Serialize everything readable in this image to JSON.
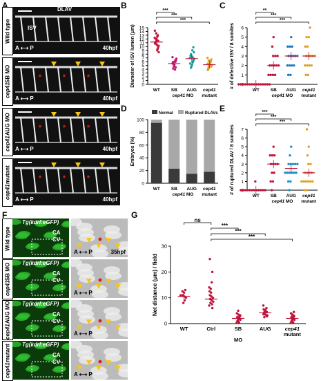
{
  "panel_letters": {
    "a": "A",
    "b": "B",
    "c": "C",
    "d": "D",
    "e": "E",
    "f": "F",
    "g": "G"
  },
  "panelA": {
    "rows": [
      {
        "label": "Wild type"
      },
      {
        "label": "cep41 SB MO"
      },
      {
        "label": "cep41 AUG MO"
      },
      {
        "label": "cep41 mutant"
      }
    ],
    "dlav": "DLAV",
    "isv": "ISV",
    "axis": "A ⟷ P",
    "stage": "40hpf"
  },
  "panelF": {
    "rows": [
      {
        "label": "Wild type"
      },
      {
        "label": "cep41 SB MO"
      },
      {
        "label": "cep41 AUG MO"
      },
      {
        "label": "cep41 mutant"
      }
    ],
    "transgene": "Tg(kdrl:eGFP)",
    "ca": "CA",
    "cv": "CV",
    "axis": "A ⟷ P",
    "stage": "35hpf"
  },
  "chart_data": [
    {
      "id": "B",
      "type": "scatter",
      "ylabel": "Diameter of ISV lumen (μm)",
      "ylim": [
        0,
        15
      ],
      "yticks": [
        "0",
        "1",
        "2",
        "3",
        "4",
        "5",
        "6",
        "7",
        "8",
        "9",
        "10",
        "11",
        "12",
        "13",
        "14",
        "15"
      ],
      "categories": [
        "WT",
        "SB",
        "AUG",
        "cep41 mutant"
      ],
      "group_label": "cep41 MO",
      "means": [
        11.2,
        5.5,
        6.8,
        5.2
      ],
      "colors": [
        "#c0143c",
        "#c2187a",
        "#18a0a0",
        "#e0a020"
      ],
      "points": [
        [
          14.2,
          13.5,
          13,
          12.6,
          12.3,
          12,
          11.8,
          11.5,
          11.2,
          11,
          10.8,
          10.5,
          10.2,
          9.8,
          9.4,
          9,
          8.5,
          12.8
        ],
        [
          7.2,
          6.8,
          6.4,
          6,
          5.7,
          5.5,
          5.2,
          5,
          4.8,
          4.5,
          4.2,
          3.9,
          5.9,
          6.2
        ],
        [
          9.8,
          9,
          8.5,
          8,
          7.6,
          7.3,
          7,
          6.8,
          6.6,
          6.4,
          6.2,
          6,
          5.8,
          5.5,
          5.2,
          4.8,
          4.4,
          7.8,
          7.1
        ],
        [
          7,
          6.6,
          6.2,
          6,
          5.8,
          5.6,
          5.4,
          5.2,
          5,
          4.9,
          4.8,
          4.6,
          4.4,
          4.2,
          4,
          3.8,
          5.5,
          5.1,
          4.7,
          6.3
        ]
      ],
      "sig": [
        {
          "from": 0,
          "to": 1,
          "text": "***"
        },
        {
          "from": 0,
          "to": 2,
          "text": "***"
        },
        {
          "from": 0,
          "to": 3,
          "text": "***"
        }
      ]
    },
    {
      "id": "C",
      "type": "scatter",
      "ylabel": "# of defective ISV / 8 somites",
      "ylim": [
        0,
        6
      ],
      "yticks": [
        "0",
        "1",
        "2",
        "3",
        "4",
        "5",
        "6"
      ],
      "categories": [
        "WT",
        "SB",
        "AUG",
        "cep41 mutant"
      ],
      "group_label": "cep41 MO",
      "means": [
        0,
        2,
        3,
        3
      ],
      "colors": [
        "#c0143c",
        "#c0143c",
        "#1878c8",
        "#e0a020"
      ],
      "points": [
        [
          0,
          0,
          0,
          0,
          0,
          0,
          0,
          0,
          0,
          0,
          0,
          0,
          0,
          0,
          0
        ],
        [
          5,
          4,
          3,
          3,
          2,
          2,
          2,
          2,
          1,
          1,
          1,
          1,
          2,
          3
        ],
        [
          5,
          4,
          4,
          3,
          3,
          3,
          3,
          2,
          2,
          2,
          1,
          1,
          3,
          4,
          2
        ],
        [
          6,
          5,
          5,
          4,
          4,
          3,
          3,
          3,
          3,
          2,
          2,
          2,
          2,
          1,
          1,
          3
        ]
      ],
      "sig": [
        {
          "from": 0,
          "to": 1,
          "text": "**"
        },
        {
          "from": 0,
          "to": 2,
          "text": "***"
        },
        {
          "from": 0,
          "to": 3,
          "text": "***"
        }
      ]
    },
    {
      "id": "D",
      "type": "bar",
      "ylabel": "Embryos (%)",
      "ylim": [
        0,
        100
      ],
      "yticks": [
        "0",
        "20",
        "40",
        "60",
        "80",
        "100"
      ],
      "categories": [
        "WT",
        "SB",
        "AUG",
        "cep41 mutant"
      ],
      "group_label": "cep41 MO",
      "series": [
        {
          "name": "Normal",
          "values": [
            95,
            23,
            15,
            18
          ],
          "color": "#3a3a3a"
        },
        {
          "name": "Ruptured DLAVs",
          "values": [
            5,
            77,
            85,
            82
          ],
          "color": "#a8a8a8"
        }
      ]
    },
    {
      "id": "E",
      "type": "scatter",
      "ylabel": "# of ruptured DLAV / 8 somites",
      "ylim": [
        0,
        7
      ],
      "yticks": [
        "0",
        "1",
        "2",
        "3",
        "4",
        "5",
        "6",
        "7"
      ],
      "categories": [
        "WT",
        "SB",
        "AUG",
        "cep41 mutant"
      ],
      "group_label": "cep41 MO",
      "means": [
        0,
        3,
        2.5,
        2
      ],
      "colors": [
        "#c0143c",
        "#c0143c",
        "#1890c8",
        "#e0a020"
      ],
      "points": [
        [
          0,
          0,
          0,
          0,
          0,
          0,
          0,
          0,
          0,
          0,
          0,
          0,
          1
        ],
        [
          5,
          4,
          4,
          3,
          3,
          3,
          2,
          2,
          1,
          1,
          0,
          3,
          4
        ],
        [
          5,
          4,
          3,
          3,
          3,
          3,
          2,
          2,
          2,
          2,
          2,
          1,
          1,
          0,
          3,
          2
        ],
        [
          7,
          5,
          4,
          3,
          3,
          2,
          2,
          2,
          1,
          1,
          1,
          1,
          1,
          0,
          0,
          2,
          1
        ]
      ],
      "sig": [
        {
          "from": 0,
          "to": 1,
          "text": "***"
        },
        {
          "from": 0,
          "to": 2,
          "text": "***"
        },
        {
          "from": 0,
          "to": 3,
          "text": "***"
        }
      ]
    },
    {
      "id": "G",
      "type": "scatter",
      "ylabel": "Net distance (μm) / field",
      "ylim": [
        0,
        30
      ],
      "yticks": [
        "0",
        "10",
        "20",
        "30"
      ],
      "categories": [
        "WT",
        "Ctrl",
        "SB",
        "AUG",
        "cep41 mutant"
      ],
      "group_label": "MO",
      "means": [
        10.5,
        9.5,
        2,
        4.2,
        2
      ],
      "colors": [
        "#c0143c",
        "#c0143c",
        "#c0143c",
        "#c0143c",
        "#c0143c"
      ],
      "points": [
        [
          13,
          12,
          11,
          11,
          10.5,
          10,
          9,
          8,
          12.5,
          10.8
        ],
        [
          25,
          20,
          16,
          14,
          12,
          11,
          10,
          9,
          8.5,
          8,
          7.5,
          7,
          6,
          9.5,
          10.5,
          12.5,
          13.5
        ],
        [
          5,
          4,
          3.5,
          3,
          2.5,
          2.2,
          2,
          1.8,
          1.5,
          1.2,
          1,
          0.8,
          0.5,
          0.2,
          2.8,
          3.2,
          1.6,
          2.4
        ],
        [
          7,
          6,
          5.5,
          5,
          4.8,
          4.5,
          4.2,
          4,
          3.8,
          3.5,
          3.2,
          3,
          2.8,
          2.5,
          4.6,
          5.2,
          3.6,
          4.4
        ],
        [
          4.5,
          4,
          3.5,
          3,
          2.8,
          2.5,
          2.2,
          2,
          1.8,
          1.5,
          1.2,
          1,
          0.8,
          0.5,
          0.2,
          2.6,
          1.4,
          3.3
        ]
      ],
      "sig": [
        {
          "from": 0,
          "to": 1,
          "text": "ns"
        },
        {
          "from": 1,
          "to": 2,
          "text": "***"
        },
        {
          "from": 1,
          "to": 3,
          "text": "***"
        },
        {
          "from": 1,
          "to": 4,
          "text": "***"
        }
      ]
    }
  ]
}
